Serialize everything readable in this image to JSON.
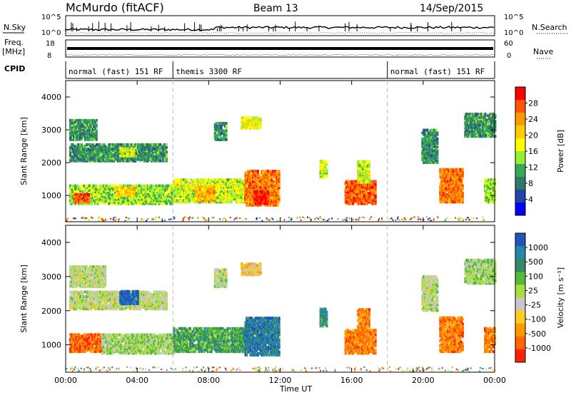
{
  "header": {
    "title": "McMurdo (fitACF)",
    "beam": "Beam 13",
    "date": "14/Sep/2015"
  },
  "summary_panels": {
    "nsky_label": "N.Sky",
    "nsearch_label": "N.Search",
    "nsky_ticks": [
      "10^5",
      "10^0"
    ],
    "nsearch_ticks": [
      "10^5",
      "10^0"
    ],
    "freq_label_top": "Freq.",
    "freq_label_units": "[MHz]",
    "freq_ticks": [
      "18",
      "8"
    ],
    "nave_label": "Nave",
    "nave_ticks": [
      "60",
      "0"
    ],
    "cpid_label": "CPID",
    "cpid_segments": [
      {
        "label": "normal (fast) 151 RF",
        "start": 0.0,
        "end": 6.0
      },
      {
        "label": "themis 3300 RF",
        "start": 6.0,
        "end": 18.0
      },
      {
        "label": "normal (fast) 151 RF",
        "start": 18.0,
        "end": 24.0
      }
    ]
  },
  "chart_data": [
    {
      "type": "heatmap",
      "name": "power",
      "ylabel": "Slant Range [km]",
      "yticks": [
        1000,
        2000,
        3000,
        4000
      ],
      "ylim": [
        200,
        4500
      ],
      "xlim": [
        0,
        24
      ],
      "colorbar": {
        "label": "Power [dB]",
        "ticks": [
          "28",
          "24",
          "20",
          "16",
          "12",
          "8",
          "4"
        ],
        "colors": [
          "#ff0000",
          "#ff5500",
          "#ff9900",
          "#ffcc00",
          "#ffff00",
          "#99ee33",
          "#33aa55",
          "#337766",
          "#2244aa",
          "#0000ff"
        ]
      },
      "regions": [
        {
          "t0": 0.2,
          "t1": 6.0,
          "r0": 750,
          "r1": 1300,
          "level": 0.45
        },
        {
          "t0": 0.4,
          "t1": 1.3,
          "r0": 800,
          "r1": 1050,
          "level": 0.85
        },
        {
          "t0": 2.8,
          "t1": 3.8,
          "r0": 1000,
          "r1": 1250,
          "level": 0.65
        },
        {
          "t0": 6.0,
          "t1": 10.3,
          "r0": 800,
          "r1": 1500,
          "level": 0.5
        },
        {
          "t0": 7.2,
          "t1": 8.3,
          "r0": 850,
          "r1": 1300,
          "level": 0.7
        },
        {
          "t0": 10.0,
          "t1": 11.9,
          "r0": 700,
          "r1": 1750,
          "level": 0.8
        },
        {
          "t0": 10.5,
          "t1": 11.3,
          "r0": 750,
          "r1": 1150,
          "level": 0.95
        },
        {
          "t0": 0.2,
          "t1": 5.6,
          "r0": 2050,
          "r1": 2550,
          "level": 0.3
        },
        {
          "t0": 3.0,
          "t1": 3.8,
          "r0": 2200,
          "r1": 2450,
          "level": 0.55
        },
        {
          "t0": 0.2,
          "t1": 1.7,
          "r0": 2700,
          "r1": 3300,
          "level": 0.3
        },
        {
          "t0": 8.3,
          "t1": 9.0,
          "r0": 2700,
          "r1": 3200,
          "level": 0.3
        },
        {
          "t0": 9.8,
          "t1": 10.9,
          "r0": 3050,
          "r1": 3400,
          "level": 0.55
        },
        {
          "t0": 14.2,
          "t1": 14.6,
          "r0": 1550,
          "r1": 2050,
          "level": 0.5
        },
        {
          "t0": 15.6,
          "t1": 17.3,
          "r0": 750,
          "r1": 1450,
          "level": 0.85
        },
        {
          "t0": 16.3,
          "t1": 17.0,
          "r0": 1400,
          "r1": 2050,
          "level": 0.5
        },
        {
          "t0": 20.9,
          "t1": 22.2,
          "r0": 800,
          "r1": 1800,
          "level": 0.8
        },
        {
          "t0": 19.9,
          "t1": 20.8,
          "r0": 2000,
          "r1": 3000,
          "level": 0.3
        },
        {
          "t0": 22.3,
          "t1": 24.0,
          "r0": 2800,
          "r1": 3500,
          "level": 0.3
        },
        {
          "t0": 23.4,
          "t1": 24.0,
          "r0": 800,
          "r1": 1500,
          "level": 0.45
        }
      ]
    },
    {
      "type": "heatmap",
      "name": "velocity",
      "ylabel": "Slant Range [km]",
      "xlabel": "Time UT",
      "xticks": [
        "00:00",
        "04:00",
        "08:00",
        "12:00",
        "16:00",
        "20:00",
        "00:00"
      ],
      "yticks": [
        1000,
        2000,
        3000,
        4000
      ],
      "ylim": [
        200,
        4500
      ],
      "xlim": [
        0,
        24
      ],
      "colorbar": {
        "label": "Velocity [m s⁻¹]",
        "ticks": [
          "1000",
          "500",
          "100",
          "25",
          "-25",
          "-100",
          "-500",
          "-1000"
        ],
        "colors": [
          "#2255bb",
          "#2288aa",
          "#338866",
          "#55bb33",
          "#aadd44",
          "#c8c8c8",
          "#ffcc22",
          "#ff9900",
          "#ff6600",
          "#ff2200"
        ]
      },
      "regions": [
        {
          "t0": 0.2,
          "t1": 2.0,
          "r0": 800,
          "r1": 1300,
          "level": 0.85
        },
        {
          "t0": 2.0,
          "t1": 6.0,
          "r0": 750,
          "r1": 1300,
          "level": 0.45
        },
        {
          "t0": 6.0,
          "t1": 10.0,
          "r0": 800,
          "r1": 1500,
          "level": 0.3
        },
        {
          "t0": 10.0,
          "t1": 11.9,
          "r0": 700,
          "r1": 1800,
          "level": 0.15
        },
        {
          "t0": 0.2,
          "t1": 2.2,
          "r0": 2700,
          "r1": 3300,
          "level": 0.5
        },
        {
          "t0": 0.2,
          "t1": 5.6,
          "r0": 2050,
          "r1": 2550,
          "level": 0.5
        },
        {
          "t0": 3.0,
          "t1": 4.0,
          "r0": 2200,
          "r1": 2600,
          "level": 0.05
        },
        {
          "t0": 8.3,
          "t1": 9.0,
          "r0": 2700,
          "r1": 3200,
          "level": 0.5
        },
        {
          "t0": 9.8,
          "t1": 10.9,
          "r0": 3050,
          "r1": 3400,
          "level": 0.65
        },
        {
          "t0": 14.2,
          "t1": 14.6,
          "r0": 1550,
          "r1": 2050,
          "level": 0.25
        },
        {
          "t0": 15.6,
          "t1": 17.3,
          "r0": 750,
          "r1": 1450,
          "level": 0.8
        },
        {
          "t0": 16.3,
          "t1": 17.0,
          "r0": 1400,
          "r1": 2050,
          "level": 0.8
        },
        {
          "t0": 20.9,
          "t1": 22.2,
          "r0": 800,
          "r1": 1800,
          "level": 0.8
        },
        {
          "t0": 19.9,
          "t1": 20.8,
          "r0": 2000,
          "r1": 3000,
          "level": 0.5
        },
        {
          "t0": 22.3,
          "t1": 24.0,
          "r0": 2800,
          "r1": 3500,
          "level": 0.45
        },
        {
          "t0": 23.4,
          "t1": 24.0,
          "r0": 800,
          "r1": 1500,
          "level": 0.8
        }
      ]
    }
  ]
}
